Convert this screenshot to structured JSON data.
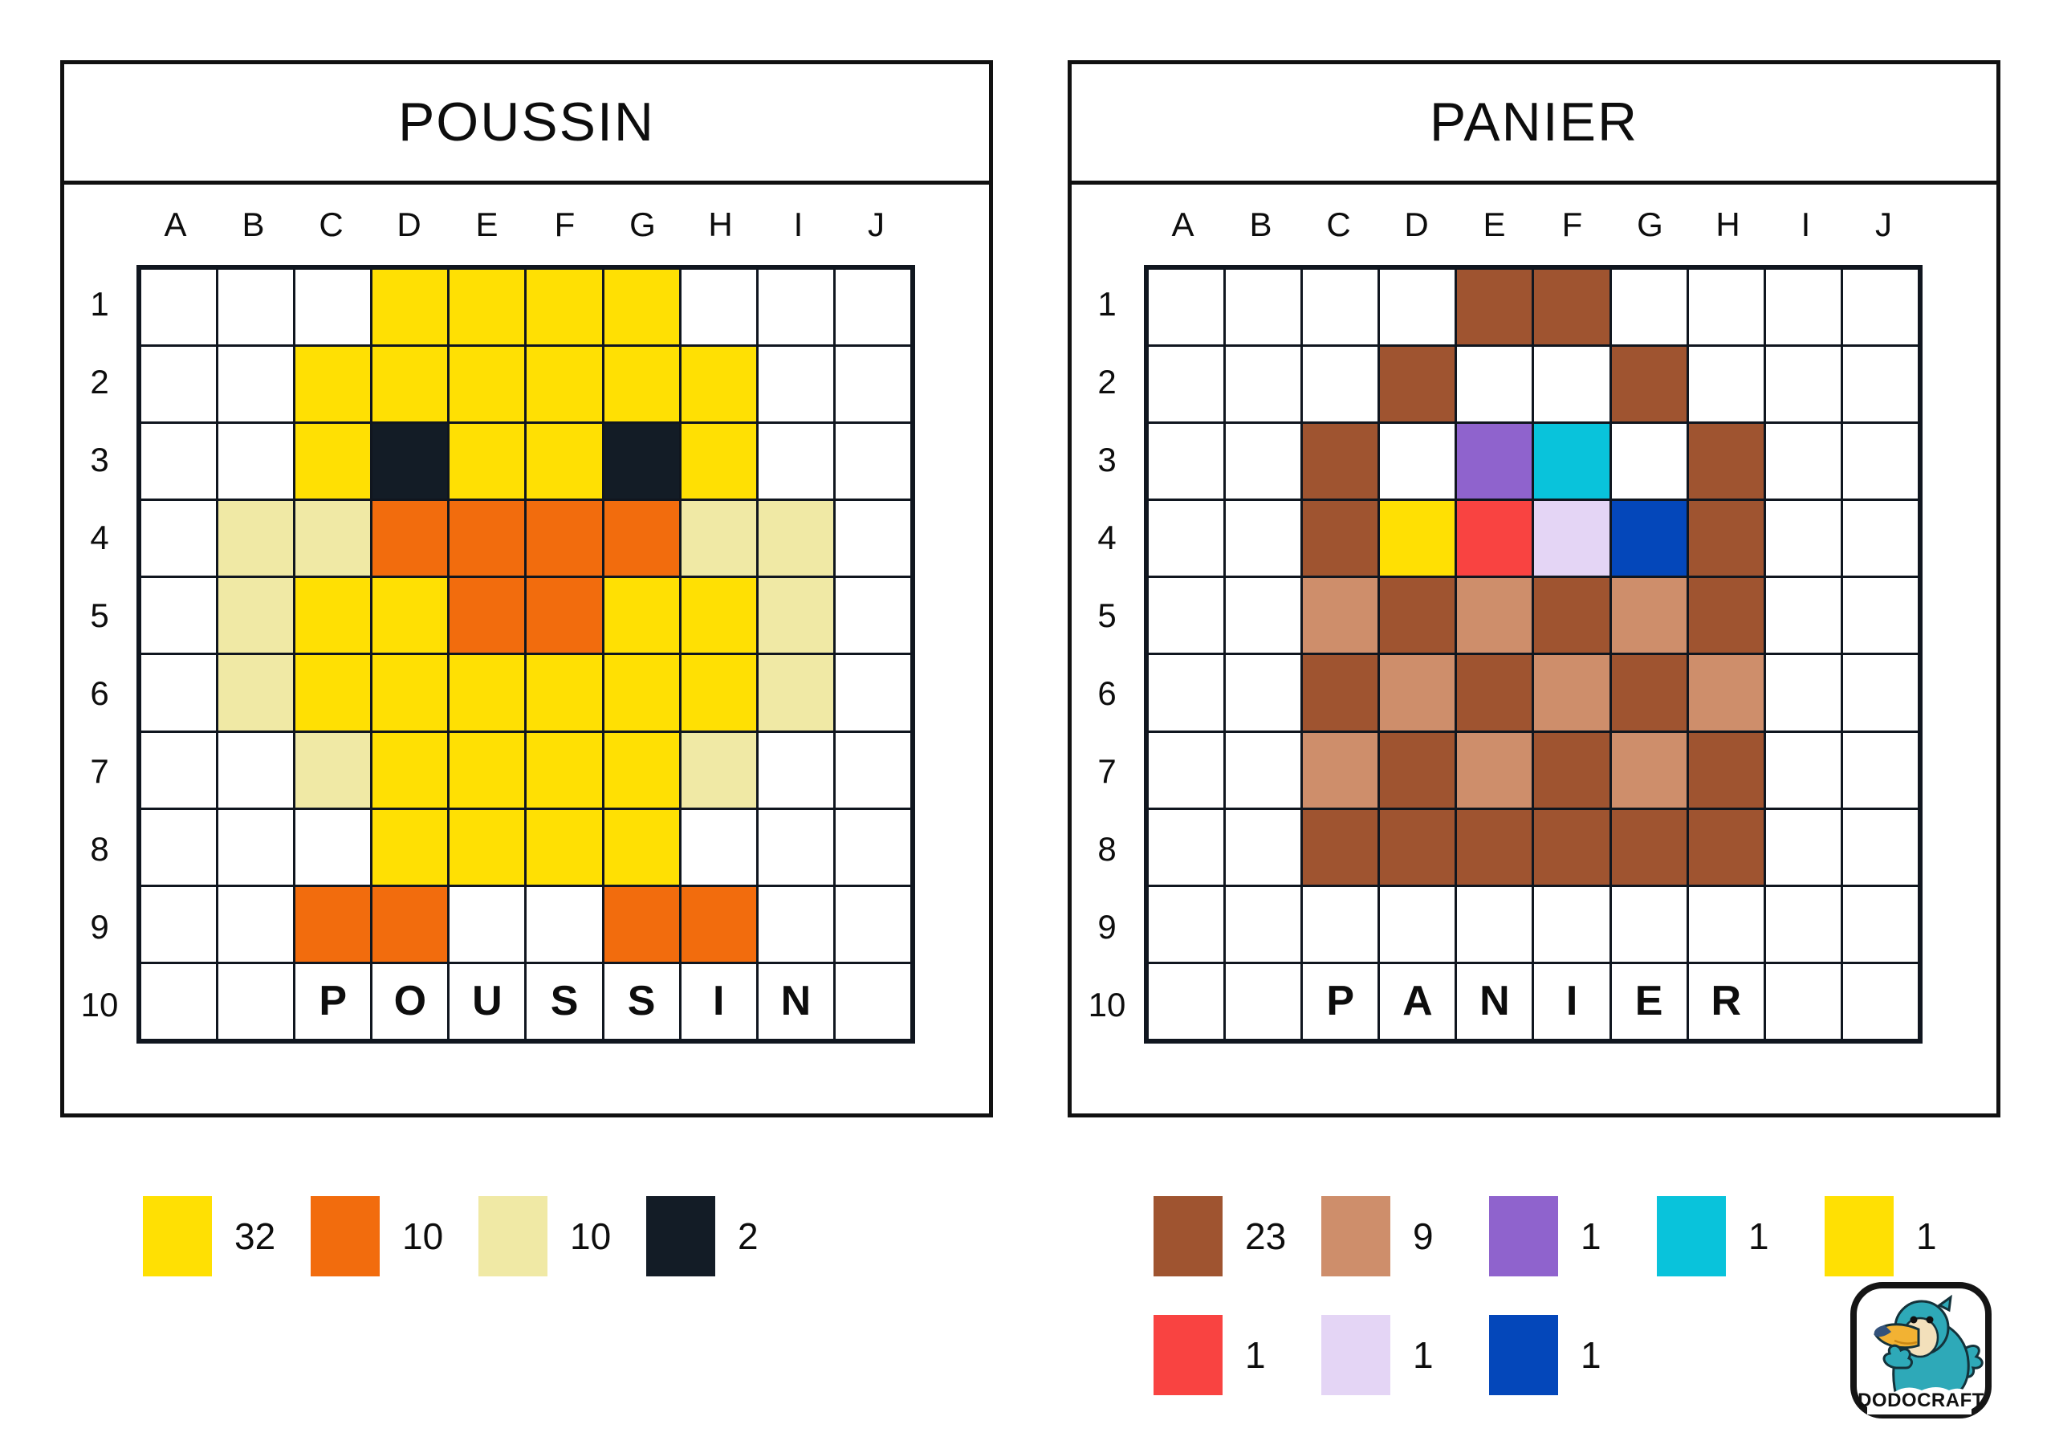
{
  "shared": {
    "columns": [
      "A",
      "B",
      "C",
      "D",
      "E",
      "F",
      "G",
      "H",
      "I",
      "J"
    ],
    "row_numbers": [
      "1",
      "2",
      "3",
      "4",
      "5",
      "6",
      "7",
      "8",
      "9",
      "10"
    ],
    "palette": {
      ".": {
        "name": "white",
        "hex": "#FFFFFF"
      },
      "Y": {
        "name": "yellow",
        "hex": "#FFE003"
      },
      "O": {
        "name": "orange",
        "hex": "#F26C0D"
      },
      "P": {
        "name": "pale-yellow",
        "hex": "#F0E9A5"
      },
      "K": {
        "name": "dark-navy",
        "hex": "#131C26"
      },
      "B": {
        "name": "brown",
        "hex": "#9F5430"
      },
      "T": {
        "name": "tan",
        "hex": "#CE8E6B"
      },
      "V": {
        "name": "purple",
        "hex": "#8F63CD"
      },
      "C": {
        "name": "cyan",
        "hex": "#09C3DB"
      },
      "R": {
        "name": "red",
        "hex": "#F94341"
      },
      "L": {
        "name": "lavender",
        "hex": "#E4D5F5"
      },
      "U": {
        "name": "blue",
        "hex": "#0447BA"
      }
    }
  },
  "panels": [
    {
      "title": "POUSSIN",
      "word_row": 10,
      "word_letters": [
        "",
        "",
        "P",
        "O",
        "U",
        "S",
        "S",
        "I",
        "N",
        ""
      ],
      "cells": [
        "...YYYY...",
        "..YYYYYY..",
        "..YKYYKY..",
        ".PPOOOOPP.",
        ".PYYOOYYP.",
        ".PYYYYYYP.",
        "..PYYYYP..",
        "...YYYY...",
        "..OO..OO..",
        ".........."
      ]
    },
    {
      "title": "PANIER",
      "word_row": 10,
      "word_letters": [
        "",
        "",
        "P",
        "A",
        "N",
        "I",
        "E",
        "R",
        "",
        ""
      ],
      "cells": [
        "....BB....",
        "...B..B...",
        "..B.VC.B..",
        "..BYRLUB..",
        "..TBTBTB..",
        "..BTBTBT..",
        "..TBTBTB..",
        "..BBBBBB..",
        "..........",
        ".........."
      ]
    }
  ],
  "legends": {
    "poussin": {
      "rows": [
        [
          {
            "name": "yellow",
            "hex": "#FFE003",
            "count": "32"
          },
          {
            "name": "orange",
            "hex": "#F26C0D",
            "count": "10"
          },
          {
            "name": "pale-yellow",
            "hex": "#F0E9A5",
            "count": "10"
          },
          {
            "name": "dark-navy",
            "hex": "#131C26",
            "count": "2"
          }
        ]
      ]
    },
    "panier": {
      "rows": [
        [
          {
            "name": "brown",
            "hex": "#9F5430",
            "count": "23"
          },
          {
            "name": "tan",
            "hex": "#CE8E6B",
            "count": "9"
          },
          {
            "name": "purple",
            "hex": "#8F63CD",
            "count": "1"
          },
          {
            "name": "cyan",
            "hex": "#09C3DB",
            "count": "1"
          },
          {
            "name": "yellow",
            "hex": "#FFE003",
            "count": "1"
          }
        ],
        [
          {
            "name": "red",
            "hex": "#F94341",
            "count": "1"
          },
          {
            "name": "lavender",
            "hex": "#E4D5F5",
            "count": "1"
          },
          {
            "name": "blue",
            "hex": "#0447BA",
            "count": "1"
          }
        ]
      ]
    }
  },
  "logo": {
    "brand": "DODOCRAFT"
  }
}
